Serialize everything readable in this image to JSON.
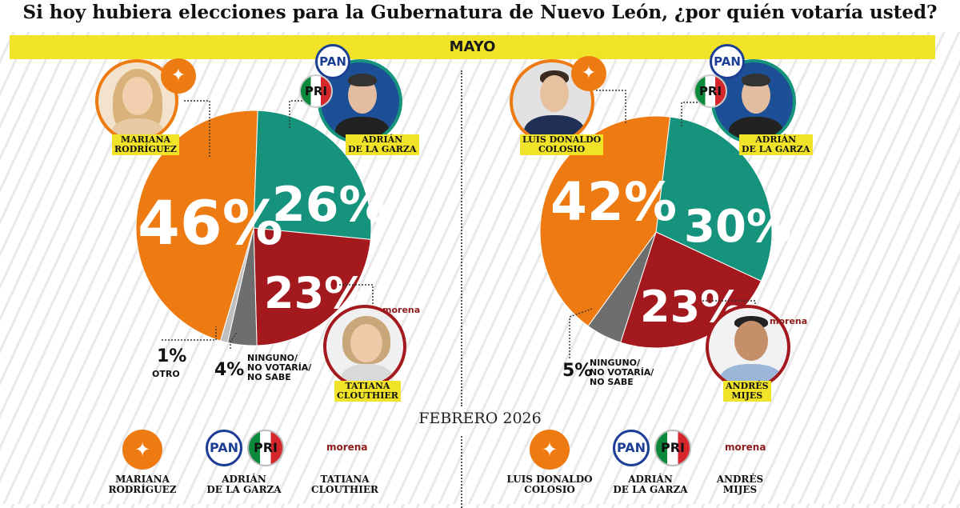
{
  "headline": "Si hoy hubiera elecciones para la Gubernatura de Nuevo León, ¿por quién votaría usted?",
  "month": "MAYO",
  "colors": {
    "orange": "#ee7a12",
    "teal": "#16937c",
    "red": "#a4191d",
    "gray": "#6e6e6e",
    "lightgray": "#bfbfbf",
    "yellow": "#f1e428"
  },
  "chart_data": [
    {
      "type": "pie",
      "title": "MAYO",
      "slices": [
        {
          "label": "MARIANA RODRÍGUEZ",
          "value": 46,
          "display": "46%",
          "color": "#ee7a12"
        },
        {
          "label": "ADRIÁN DE LA GARZA",
          "value": 26,
          "display": "26%",
          "color": "#16937c"
        },
        {
          "label": "TATIANA CLOUTHIER",
          "value": 23,
          "display": "23%",
          "color": "#a4191d"
        },
        {
          "label": "NINGUNO/ NO VOTARÍA/ NO SABE",
          "value": 4,
          "display": "4%",
          "color": "#6e6e6e"
        },
        {
          "label": "OTRO",
          "value": 1,
          "display": "1%",
          "color": "#bfbfbf"
        }
      ]
    },
    {
      "type": "pie",
      "title": "MAYO",
      "slices": [
        {
          "label": "LUIS DONALDO COLOSIO",
          "value": 42,
          "display": "42%",
          "color": "#ee7a12"
        },
        {
          "label": "ADRIÁN DE LA GARZA",
          "value": 30,
          "display": "30%",
          "color": "#16937c"
        },
        {
          "label": "ANDRÉS MIJES",
          "value": 23,
          "display": "23%",
          "color": "#a4191d"
        },
        {
          "label": "NINGUNO/ NO VOTARÍA/ NO SABE",
          "value": 5,
          "display": "5%",
          "color": "#6e6e6e"
        }
      ]
    }
  ],
  "left": {
    "name1": [
      "MARIANA",
      "RODRÍGUEZ"
    ],
    "name2": [
      "ADRIÁN",
      "DE LA GARZA"
    ],
    "name3": [
      "TATIANA",
      "CLOUTHIER"
    ],
    "other_pct": "1%",
    "other_label": "OTRO",
    "none_pct": "4%",
    "none_label": [
      "NINGUNO/",
      "NO VOTARÍA/",
      "NO SABE"
    ]
  },
  "right": {
    "name1": [
      "LUIS DONALDO",
      "COLOSIO"
    ],
    "name2": [
      "ADRIÁN",
      "DE LA GARZA"
    ],
    "name3": [
      "ANDRÉS",
      "MIJES"
    ],
    "none_pct": "5%",
    "none_label": [
      "NINGUNO/",
      "NO VOTARÍA/",
      "NO SABE"
    ]
  },
  "party": {
    "pan": "PAN",
    "pri": "PRI",
    "morena": "morena"
  },
  "february": {
    "title": "FEBRERO 2026",
    "left": [
      [
        "MARIANA",
        "RODRÍGUEZ"
      ],
      [
        "ADRIÁN",
        "DE LA GARZA"
      ],
      [
        "TATIANA",
        "CLOUTHIER"
      ]
    ],
    "right": [
      [
        "LUIS DONALDO",
        "COLOSIO"
      ],
      [
        "ADRIÁN",
        "DE LA GARZA"
      ],
      [
        "ANDRÉS",
        "MIJES"
      ]
    ]
  }
}
